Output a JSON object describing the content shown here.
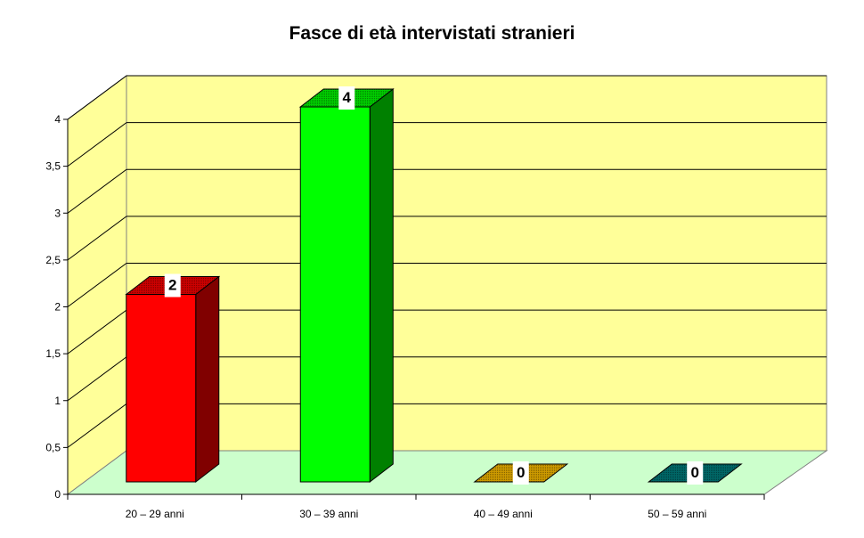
{
  "chart_data": {
    "type": "bar",
    "title": "Fasce di età intervistati stranieri",
    "categories": [
      "20 – 29 anni",
      "30 – 39 anni",
      "40 – 49 anni",
      "50 – 59 anni"
    ],
    "values": [
      2,
      4,
      0,
      0
    ],
    "data_labels": [
      "2",
      "4",
      "0",
      "0"
    ],
    "colors": [
      "#ff0000",
      "#00ff00",
      "#cc9900",
      "#006666"
    ],
    "side_colors": [
      "#800000",
      "#008000",
      "#996600",
      "#003333"
    ],
    "top_colors": [
      "#cc0000",
      "#00cc00",
      "#cc9900",
      "#006666"
    ],
    "ylim": [
      0,
      4
    ],
    "yticks": [
      "0",
      "0,5",
      "1",
      "1,5",
      "2",
      "2,5",
      "3",
      "3,5",
      "4"
    ],
    "grid": true,
    "three_d": true,
    "wall_color": "#ffff99",
    "floor_color": "#ccffcc",
    "legend": "none"
  }
}
